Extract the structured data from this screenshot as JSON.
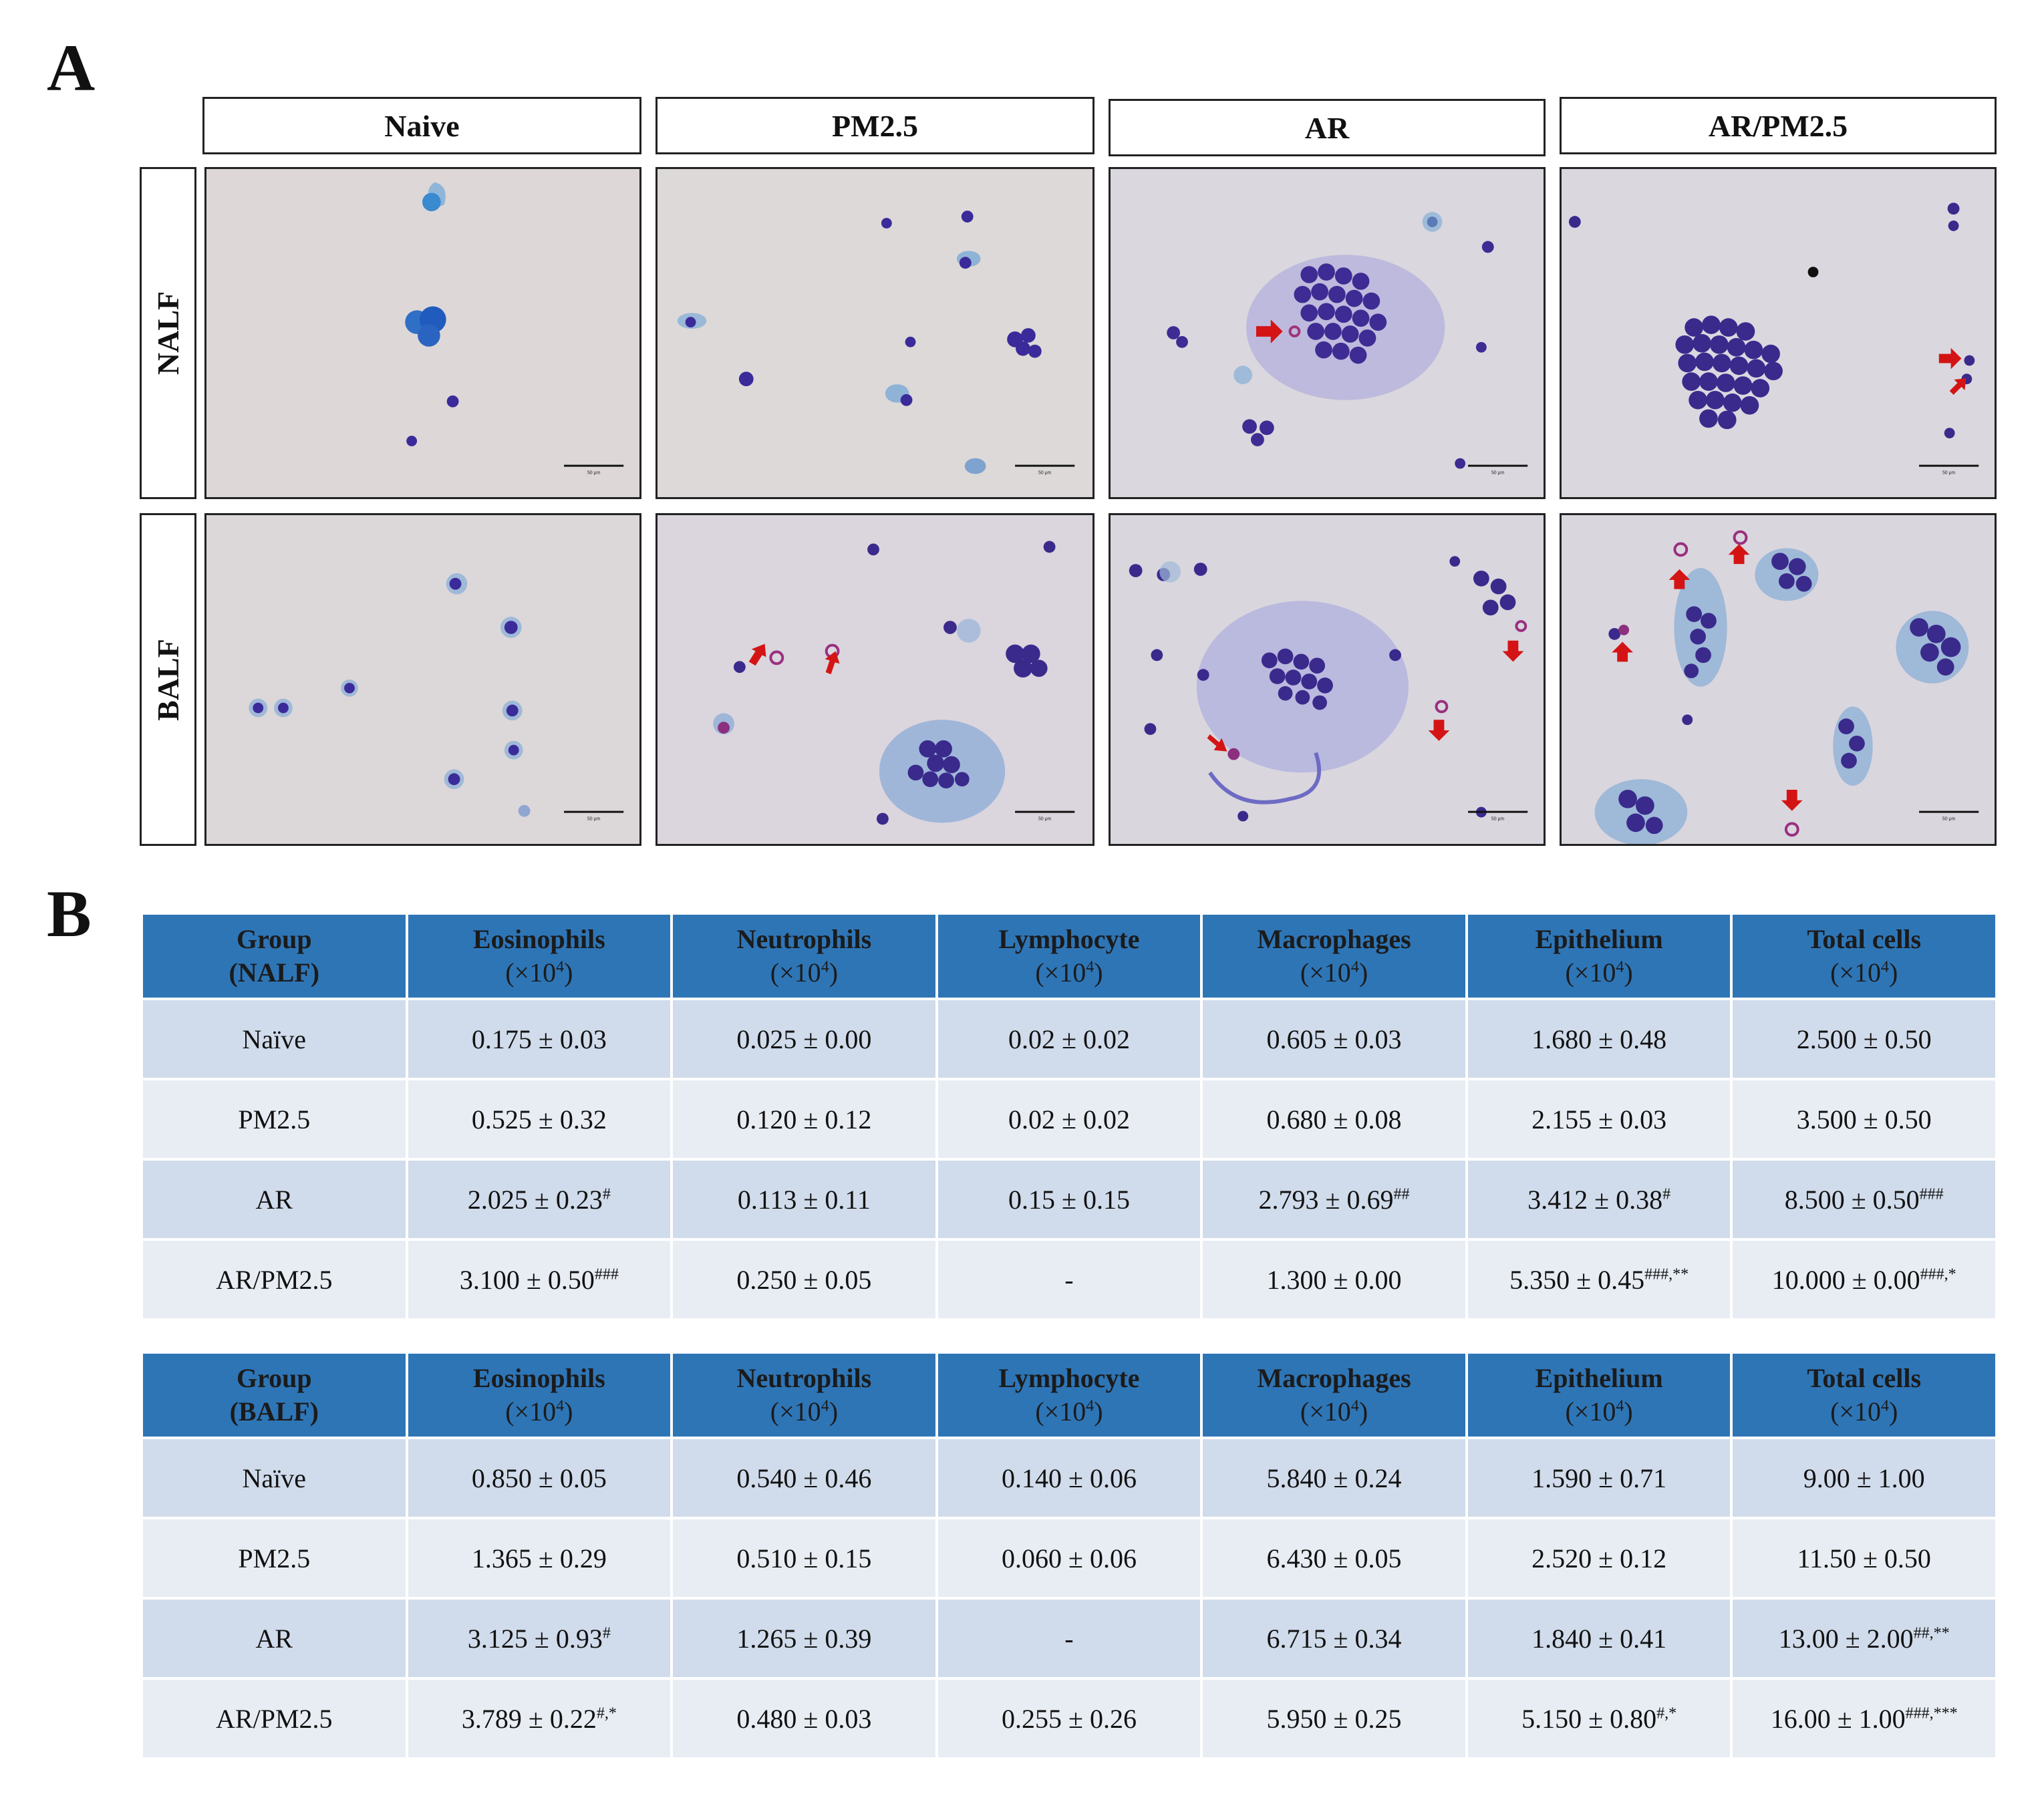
{
  "panel_a": {
    "label": "A",
    "columns": [
      "Naive",
      "PM2.5",
      "AR",
      "AR/PM2.5"
    ],
    "rows": [
      "NALF",
      "BALF"
    ],
    "scale_bar": "50 μm"
  },
  "panel_b": {
    "label": "B",
    "tables": [
      {
        "group_header": "Group",
        "group_sub": "(NALF)",
        "columns": [
          {
            "name": "Eosinophils",
            "unit": "(×10",
            "exp": "4",
            "close": ")"
          },
          {
            "name": "Neutrophils",
            "unit": "(×10",
            "exp": "4",
            "close": ")"
          },
          {
            "name": "Lymphocyte",
            "unit": "(×10",
            "exp": "4",
            "close": ")"
          },
          {
            "name": "Macrophages",
            "unit": "(×10",
            "exp": "4",
            "close": ")"
          },
          {
            "name": "Epithelium",
            "unit": "(×10",
            "exp": "4",
            "close": ")"
          },
          {
            "name": "Total cells",
            "unit": "(×10",
            "exp": "4",
            "close": ")"
          }
        ],
        "rows": [
          {
            "group": "Naïve",
            "cells": [
              {
                "v": "0.175 ± 0.03",
                "s": ""
              },
              {
                "v": "0.025 ± 0.00",
                "s": ""
              },
              {
                "v": "0.02 ± 0.02",
                "s": ""
              },
              {
                "v": "0.605 ± 0.03",
                "s": ""
              },
              {
                "v": "1.680 ± 0.48",
                "s": ""
              },
              {
                "v": "2.500 ± 0.50",
                "s": ""
              }
            ]
          },
          {
            "group": "PM2.5",
            "cells": [
              {
                "v": "0.525 ± 0.32",
                "s": ""
              },
              {
                "v": "0.120 ± 0.12",
                "s": ""
              },
              {
                "v": "0.02 ± 0.02",
                "s": ""
              },
              {
                "v": "0.680 ± 0.08",
                "s": ""
              },
              {
                "v": "2.155 ± 0.03",
                "s": ""
              },
              {
                "v": "3.500 ± 0.50",
                "s": ""
              }
            ]
          },
          {
            "group": "AR",
            "cells": [
              {
                "v": "2.025 ± 0.23",
                "s": "#"
              },
              {
                "v": "0.113 ± 0.11",
                "s": ""
              },
              {
                "v": "0.15 ± 0.15",
                "s": ""
              },
              {
                "v": "2.793 ± 0.69",
                "s": "##"
              },
              {
                "v": "3.412 ± 0.38",
                "s": "#"
              },
              {
                "v": "8.500 ± 0.50",
                "s": "###"
              }
            ]
          },
          {
            "group": "AR/PM2.5",
            "cells": [
              {
                "v": "3.100 ± 0.50",
                "s": "###"
              },
              {
                "v": "0.250 ± 0.05",
                "s": ""
              },
              {
                "v": "-",
                "s": ""
              },
              {
                "v": "1.300 ± 0.00",
                "s": ""
              },
              {
                "v": "5.350 ± 0.45",
                "s": "###,**"
              },
              {
                "v": "10.000 ± 0.00",
                "s": "###,*"
              }
            ]
          }
        ]
      },
      {
        "group_header": "Group",
        "group_sub": "(BALF)",
        "columns": [
          {
            "name": "Eosinophils",
            "unit": "(×10",
            "exp": "4",
            "close": ")"
          },
          {
            "name": "Neutrophils",
            "unit": "(×10",
            "exp": "4",
            "close": ")"
          },
          {
            "name": "Lymphocyte",
            "unit": "(×10",
            "exp": "4",
            "close": ")"
          },
          {
            "name": "Macrophages",
            "unit": "(×10",
            "exp": "4",
            "close": ")"
          },
          {
            "name": "Epithelium",
            "unit": "(×10",
            "exp": "4",
            "close": ")"
          },
          {
            "name": "Total cells",
            "unit": "(×10",
            "exp": "4",
            "close": ")"
          }
        ],
        "rows": [
          {
            "group": "Naïve",
            "cells": [
              {
                "v": "0.850 ± 0.05",
                "s": ""
              },
              {
                "v": "0.540 ± 0.46",
                "s": ""
              },
              {
                "v": "0.140 ± 0.06",
                "s": ""
              },
              {
                "v": "5.840 ± 0.24",
                "s": ""
              },
              {
                "v": "1.590 ± 0.71",
                "s": ""
              },
              {
                "v": "9.00 ± 1.00",
                "s": ""
              }
            ]
          },
          {
            "group": "PM2.5",
            "cells": [
              {
                "v": "1.365 ± 0.29",
                "s": ""
              },
              {
                "v": "0.510 ± 0.15",
                "s": ""
              },
              {
                "v": "0.060 ± 0.06",
                "s": ""
              },
              {
                "v": "6.430 ± 0.05",
                "s": ""
              },
              {
                "v": "2.520 ± 0.12",
                "s": ""
              },
              {
                "v": "11.50 ± 0.50",
                "s": ""
              }
            ]
          },
          {
            "group": "AR",
            "cells": [
              {
                "v": "3.125 ± 0.93",
                "s": "#"
              },
              {
                "v": "1.265 ± 0.39",
                "s": ""
              },
              {
                "v": "-",
                "s": ""
              },
              {
                "v": "6.715 ± 0.34",
                "s": ""
              },
              {
                "v": "1.840 ± 0.41",
                "s": ""
              },
              {
                "v": "13.00 ± 2.00",
                "s": "##,**"
              }
            ]
          },
          {
            "group": "AR/PM2.5",
            "cells": [
              {
                "v": "3.789 ± 0.22",
                "s": "#,*"
              },
              {
                "v": "0.480 ± 0.03",
                "s": ""
              },
              {
                "v": "0.255 ± 0.26",
                "s": ""
              },
              {
                "v": "5.950 ± 0.25",
                "s": ""
              },
              {
                "v": "5.150 ± 0.80",
                "s": "#,*"
              },
              {
                "v": "16.00 ± 1.00",
                "s": "###,***"
              }
            ]
          }
        ]
      }
    ]
  },
  "colors": {
    "header_blue": "#2e75b6",
    "row_dark": "#d0dbeb",
    "row_light": "#e8edf4",
    "stain_purple": "#3f2d8f",
    "stain_blue": "#4d7fc0",
    "arrow_red": "#d41414"
  }
}
